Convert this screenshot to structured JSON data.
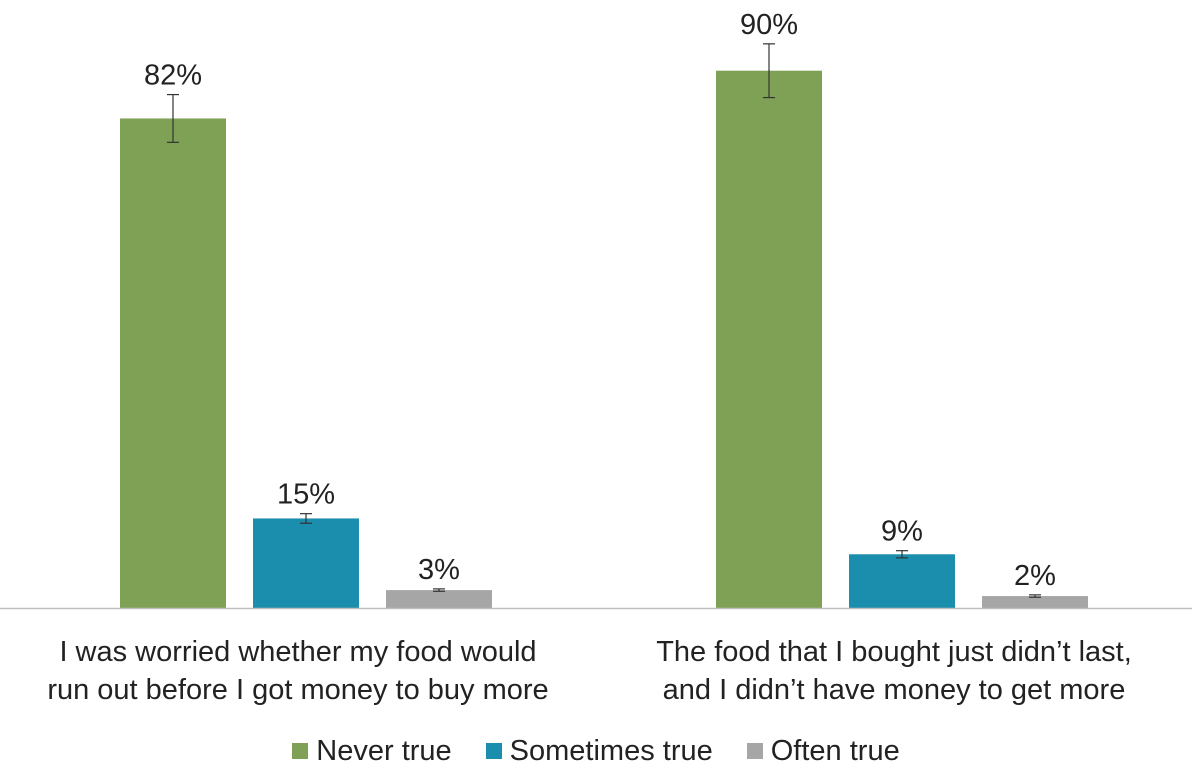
{
  "chart_data": {
    "type": "bar",
    "categories": [
      [
        "I was worried whether my food would",
        "run out before I got money to buy more"
      ],
      [
        "The food that I bought just didn’t last,",
        "and I didn’t have money to get more"
      ]
    ],
    "series": [
      {
        "name": "Never true",
        "color": "#7fa155",
        "values": [
          82,
          90
        ],
        "labels": [
          "82%",
          "90%"
        ],
        "error": [
          4,
          4.5
        ]
      },
      {
        "name": "Sometimes true",
        "color": "#1a8eac",
        "values": [
          15,
          9
        ],
        "labels": [
          "15%",
          "9%"
        ],
        "error": [
          0.8,
          0.6
        ]
      },
      {
        "name": "Often true",
        "color": "#a6a6a6",
        "values": [
          3,
          2
        ],
        "labels": [
          "3%",
          "2%"
        ],
        "error": [
          0.2,
          0.2
        ]
      }
    ],
    "ylim": [
      0,
      100
    ],
    "grid": false,
    "legend_position": "bottom"
  }
}
